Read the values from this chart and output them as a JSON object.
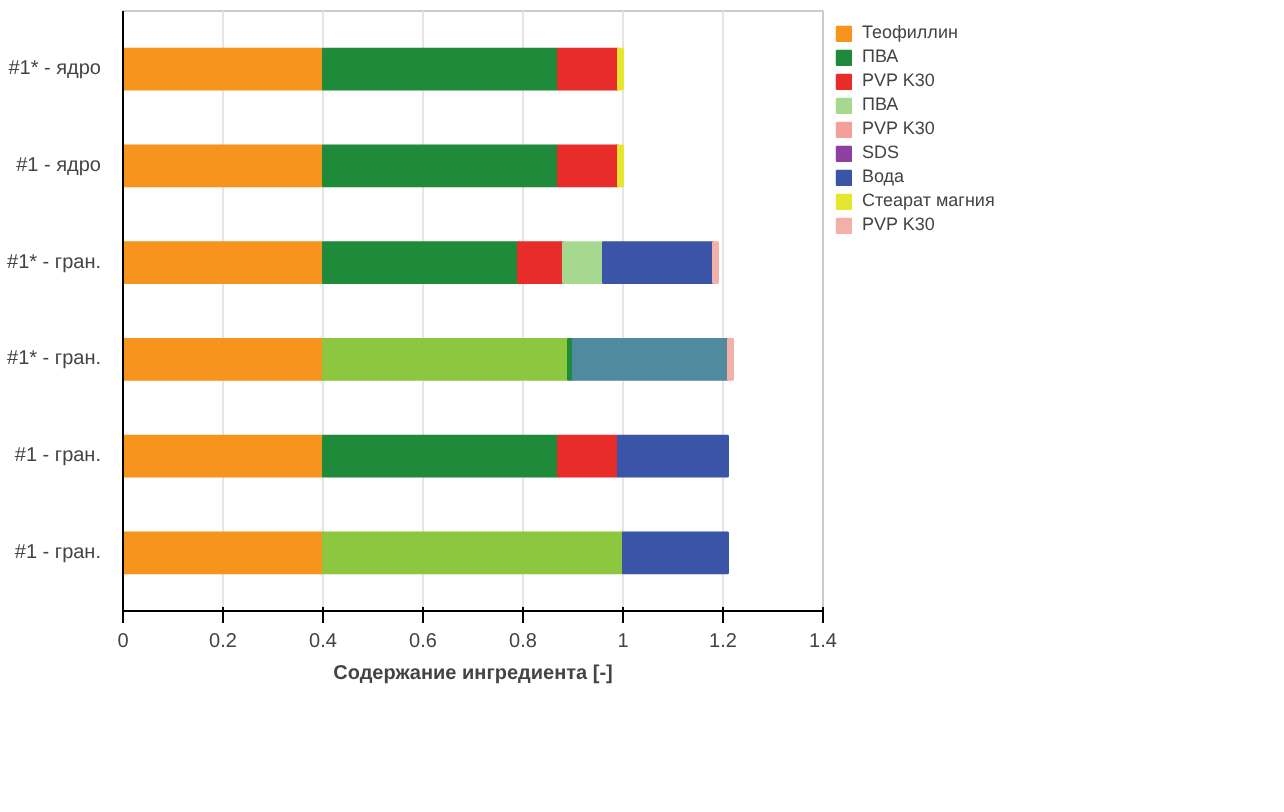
{
  "chart_data": {
    "type": "bar",
    "orientation": "horizontal",
    "stacked": true,
    "xlabel": "Содержание ингредиента [-]",
    "categories": [
      "#1* - ядро",
      "#1 - ядро",
      "#1* - гран.",
      "#1* - гран.",
      "#1 - гран.",
      "#1 - гран."
    ],
    "xlim": [
      0,
      1.4
    ],
    "xticks": [
      0,
      0.2,
      0.4,
      0.6,
      0.8,
      1,
      1.2,
      1.4
    ],
    "grid": "x",
    "legend": "right",
    "series": [
      {
        "name": "Теофиллин",
        "color": "#f7941d",
        "values": [
          0.4,
          0.4,
          0.4,
          0.4,
          0.4,
          0.4
        ]
      },
      {
        "color": "#8dc63f",
        "values": [
          null,
          null,
          null,
          0.49,
          null,
          0.6
        ]
      },
      {
        "name": "ПВА",
        "color": "#1e8a3a",
        "values": [
          0.47,
          0.47,
          0.39,
          0.01,
          0.47,
          null
        ]
      },
      {
        "name": "PVP K30",
        "color": "#e82c2a",
        "values": [
          0.12,
          0.12,
          0.09,
          null,
          0.12,
          null
        ]
      },
      {
        "color": "#4f8a9e",
        "values": [
          null,
          null,
          null,
          0.31,
          null,
          null
        ]
      },
      {
        "name": "ПВА",
        "color": "#a6d88f",
        "values": [
          null,
          null,
          0.08,
          null,
          null,
          null
        ]
      },
      {
        "name": "PVP K30",
        "color": "#f4a09a",
        "values": [
          null,
          null,
          null,
          null,
          null,
          null
        ]
      },
      {
        "name": "SDS",
        "color": "#8e3fa0",
        "values": [
          null,
          null,
          null,
          null,
          null,
          null
        ]
      },
      {
        "name": "Вода",
        "color": "#3a55a8",
        "values": [
          null,
          null,
          0.22,
          null,
          0.22,
          0.21
        ]
      },
      {
        "name": "Стеарат магния",
        "color": "#e6e62e",
        "values": [
          0.01,
          0.01,
          null,
          null,
          null,
          null
        ]
      },
      {
        "name": "PVP K30",
        "color": "#f2b0a8",
        "values": [
          null,
          null,
          0.01,
          0.01,
          null,
          null
        ]
      }
    ]
  }
}
